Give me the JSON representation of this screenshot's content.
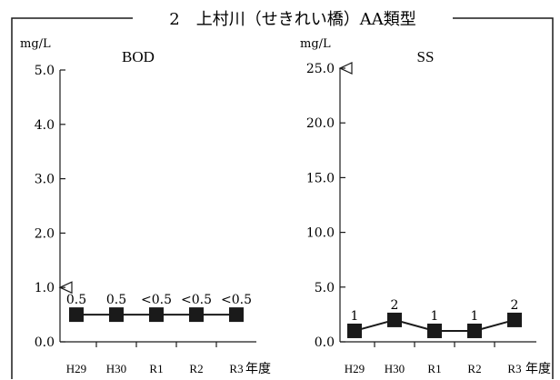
{
  "header": {
    "title": "2　上村川（せきれい橋）AA類型"
  },
  "chart_data": [
    {
      "type": "line",
      "title": "BOD",
      "unit": "mg/L",
      "ylim": [
        0,
        5
      ],
      "yticks": [
        "0.0",
        "1.0",
        "2.0",
        "3.0",
        "4.0",
        "5.0"
      ],
      "categories": [
        "H29",
        "H30",
        "R1",
        "R2",
        "R3"
      ],
      "xunit": "年度",
      "values": [
        0.5,
        0.5,
        0.5,
        0.5,
        0.5
      ],
      "data_labels": [
        "0.5",
        "0.5",
        "<0.5",
        "<0.5",
        "<0.5"
      ],
      "standard_marker": 1.0
    },
    {
      "type": "line",
      "title": "SS",
      "unit": "mg/L",
      "ylim": [
        0,
        25
      ],
      "yticks": [
        "0.0",
        "5.0",
        "10.0",
        "15.0",
        "20.0",
        "25.0"
      ],
      "categories": [
        "H29",
        "H30",
        "R1",
        "R2",
        "R3"
      ],
      "xunit": "年度",
      "values": [
        1,
        2,
        1,
        1,
        2
      ],
      "data_labels": [
        "1",
        "2",
        "1",
        "1",
        "2"
      ],
      "standard_marker": 25.0
    }
  ]
}
